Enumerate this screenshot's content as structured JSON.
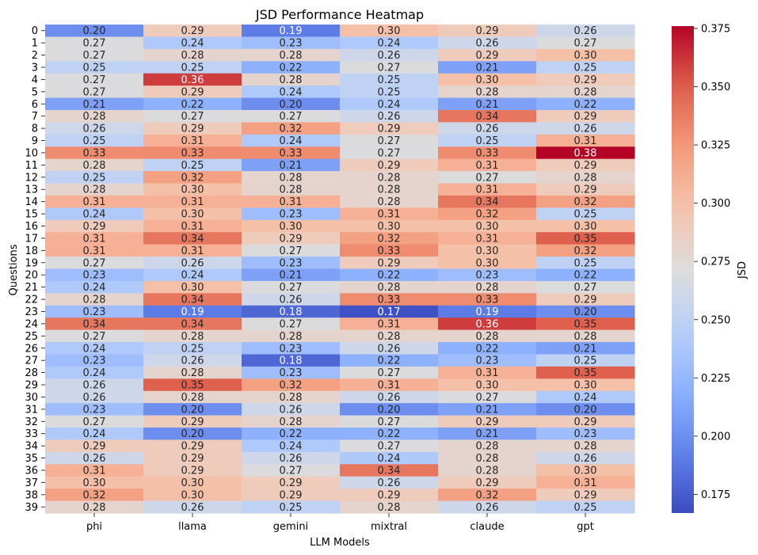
{
  "chart_data": {
    "type": "heatmap",
    "title": "JSD Performance Heatmap",
    "xlabel": "LLM Models",
    "ylabel": "Questions",
    "colorbar_label": "JSD",
    "colormap": "coolwarm",
    "vmin": 0.167,
    "vmax": 0.376,
    "colorbar_ticks": [
      "0.175",
      "0.200",
      "0.225",
      "0.250",
      "0.275",
      "0.300",
      "0.325",
      "0.350",
      "0.375"
    ],
    "colorbar_tick_values": [
      0.175,
      0.2,
      0.225,
      0.25,
      0.275,
      0.3,
      0.325,
      0.35,
      0.375
    ],
    "columns": [
      "phi",
      "llama",
      "gemini",
      "mixtral",
      "claude",
      "gpt"
    ],
    "rows": [
      "0",
      "1",
      "2",
      "3",
      "4",
      "5",
      "6",
      "7",
      "8",
      "9",
      "10",
      "11",
      "12",
      "13",
      "14",
      "15",
      "16",
      "17",
      "18",
      "19",
      "20",
      "21",
      "22",
      "23",
      "24",
      "25",
      "26",
      "27",
      "28",
      "29",
      "30",
      "31",
      "32",
      "33",
      "34",
      "35",
      "36",
      "37",
      "38",
      "39"
    ],
    "values": [
      [
        0.2,
        0.29,
        0.19,
        0.3,
        0.29,
        0.26
      ],
      [
        0.27,
        0.24,
        0.23,
        0.24,
        0.26,
        0.27
      ],
      [
        0.27,
        0.28,
        0.28,
        0.26,
        0.29,
        0.3
      ],
      [
        0.25,
        0.25,
        0.22,
        0.27,
        0.21,
        0.25
      ],
      [
        0.27,
        0.36,
        0.28,
        0.25,
        0.3,
        0.29
      ],
      [
        0.27,
        0.29,
        0.24,
        0.25,
        0.28,
        0.28
      ],
      [
        0.21,
        0.22,
        0.2,
        0.24,
        0.21,
        0.22
      ],
      [
        0.28,
        0.27,
        0.27,
        0.26,
        0.34,
        0.29
      ],
      [
        0.26,
        0.29,
        0.32,
        0.29,
        0.26,
        0.26
      ],
      [
        0.25,
        0.31,
        0.24,
        0.27,
        0.25,
        0.31
      ],
      [
        0.33,
        0.33,
        0.33,
        0.27,
        0.33,
        0.38
      ],
      [
        0.28,
        0.25,
        0.21,
        0.29,
        0.31,
        0.29
      ],
      [
        0.25,
        0.32,
        0.28,
        0.28,
        0.27,
        0.28
      ],
      [
        0.28,
        0.3,
        0.28,
        0.28,
        0.31,
        0.29
      ],
      [
        0.31,
        0.31,
        0.31,
        0.28,
        0.34,
        0.32
      ],
      [
        0.24,
        0.3,
        0.23,
        0.31,
        0.32,
        0.25
      ],
      [
        0.29,
        0.31,
        0.3,
        0.3,
        0.3,
        0.3
      ],
      [
        0.31,
        0.34,
        0.29,
        0.32,
        0.31,
        0.35
      ],
      [
        0.31,
        0.31,
        0.27,
        0.33,
        0.3,
        0.32
      ],
      [
        0.27,
        0.26,
        0.23,
        0.29,
        0.3,
        0.25
      ],
      [
        0.23,
        0.24,
        0.21,
        0.22,
        0.23,
        0.22
      ],
      [
        0.24,
        0.3,
        0.27,
        0.28,
        0.28,
        0.27
      ],
      [
        0.28,
        0.34,
        0.26,
        0.33,
        0.33,
        0.29
      ],
      [
        0.23,
        0.19,
        0.18,
        0.17,
        0.19,
        0.2
      ],
      [
        0.34,
        0.34,
        0.27,
        0.31,
        0.36,
        0.35
      ],
      [
        0.27,
        0.28,
        0.28,
        0.28,
        0.28,
        0.28
      ],
      [
        0.24,
        0.25,
        0.23,
        0.26,
        0.22,
        0.21
      ],
      [
        0.23,
        0.26,
        0.18,
        0.22,
        0.23,
        0.25
      ],
      [
        0.24,
        0.28,
        0.23,
        0.27,
        0.31,
        0.35
      ],
      [
        0.26,
        0.35,
        0.32,
        0.31,
        0.3,
        0.3
      ],
      [
        0.26,
        0.28,
        0.28,
        0.26,
        0.27,
        0.24
      ],
      [
        0.23,
        0.2,
        0.26,
        0.2,
        0.21,
        0.2
      ],
      [
        0.27,
        0.29,
        0.28,
        0.27,
        0.29,
        0.29
      ],
      [
        0.24,
        0.2,
        0.22,
        0.22,
        0.21,
        0.23
      ],
      [
        0.29,
        0.29,
        0.24,
        0.27,
        0.28,
        0.28
      ],
      [
        0.26,
        0.29,
        0.26,
        0.24,
        0.28,
        0.26
      ],
      [
        0.31,
        0.29,
        0.27,
        0.34,
        0.28,
        0.3
      ],
      [
        0.3,
        0.3,
        0.29,
        0.26,
        0.29,
        0.31
      ],
      [
        0.32,
        0.3,
        0.29,
        0.29,
        0.32,
        0.29
      ],
      [
        0.28,
        0.26,
        0.25,
        0.28,
        0.26,
        0.25
      ]
    ]
  }
}
